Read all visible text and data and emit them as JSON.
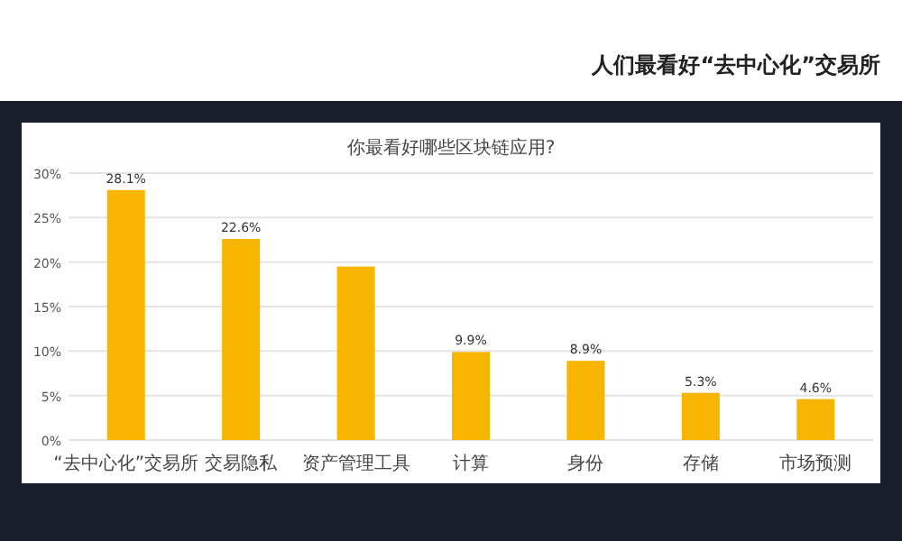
{
  "chart_data": {
    "type": "bar",
    "title": "人们最看好“去中心化”交易所",
    "subtitle": "你最看好哪些区块链应用?",
    "categories": [
      "“去中心化”交易所",
      "交易隐私",
      "资产管理工具",
      "计算",
      "身份",
      "存储",
      "市场预测"
    ],
    "values": [
      28.1,
      22.6,
      19.5,
      9.9,
      8.9,
      5.3,
      4.6
    ],
    "value_labels": [
      "28.1%",
      "22.6%",
      null,
      "9.9%",
      "8.9%",
      "5.3%",
      "4.6%"
    ],
    "color": "#f7b500",
    "ylim": [
      0,
      30
    ],
    "yticks": [
      {
        "value": 0,
        "label": "0%"
      },
      {
        "value": 5,
        "label": "5%"
      },
      {
        "value": 10,
        "label": "10%"
      },
      {
        "value": 15,
        "label": "15%"
      },
      {
        "value": 20,
        "label": "20%"
      },
      {
        "value": 25,
        "label": "25%"
      },
      {
        "value": 30,
        "label": "30%"
      }
    ],
    "grid": "y"
  }
}
